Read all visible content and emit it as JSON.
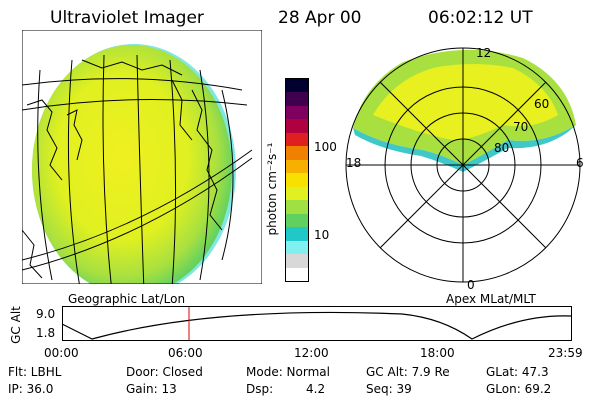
{
  "header": {
    "instrument": "Ultraviolet Imager",
    "date": "28 Apr 00",
    "time": "06:02:12 UT"
  },
  "left_panel": {
    "caption": "Geographic Lat/Lon"
  },
  "right_panel": {
    "caption": "Apex MLat/MLT",
    "mlt_labels": {
      "top": "12",
      "left": "18",
      "right": "6",
      "bottom": "0"
    },
    "lat_labels": [
      "60",
      "70",
      "80"
    ]
  },
  "colorbar": {
    "unit_label": "photon cm⁻²s⁻¹",
    "ticks": [
      "100",
      "10"
    ],
    "colors": [
      "#ffffff",
      "#d8d8d8",
      "#80f0f0",
      "#20c8c8",
      "#60d060",
      "#a0e040",
      "#e0f020",
      "#f8e000",
      "#f8b000",
      "#f08000",
      "#e02020",
      "#b00040",
      "#800060",
      "#400050",
      "#000030"
    ]
  },
  "timeline": {
    "ylabel": "GC Alt",
    "y_ticks": [
      "9.0",
      "1.8"
    ],
    "x_ticks": [
      "00:00",
      "06:00",
      "12:00",
      "18:00",
      "23:59"
    ],
    "marker_time": "06:02"
  },
  "info": {
    "flt": "Flt: LBHL",
    "door": "Door: Closed",
    "mode": "Mode: Normal",
    "gcalt": "GC Alt: 7.9 Re",
    "glat": "GLat: 47.3",
    "ip": "IP: 36.0",
    "gain": "Gain: 13",
    "dsp_label": "Dsp:",
    "dsp_value": "4.2",
    "seq": "Seq: 39",
    "glon": "GLon: 69.2"
  }
}
